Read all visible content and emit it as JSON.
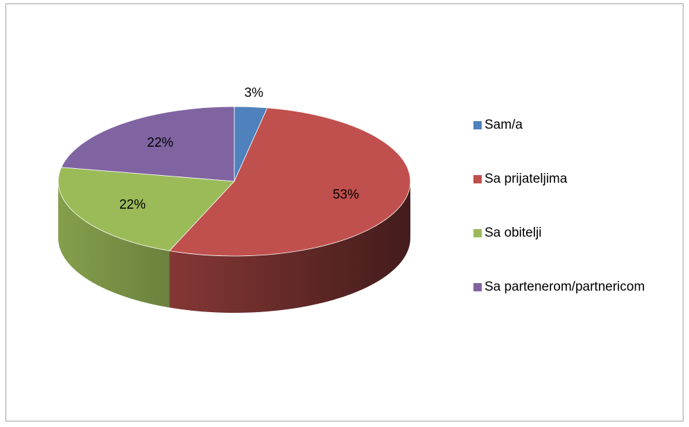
{
  "chart_data": {
    "type": "pie",
    "categories": [
      "Sam/a",
      "Sa prijateljima",
      "Sa obitelji",
      "Sa partenerom/partnericom"
    ],
    "values": [
      3,
      53,
      22,
      22
    ],
    "value_labels": [
      "3%",
      "53%",
      "22%",
      "22%"
    ],
    "colors": [
      "#4f81bd",
      "#c0504d",
      "#9bbb59",
      "#8064a2"
    ],
    "legend": "right"
  }
}
